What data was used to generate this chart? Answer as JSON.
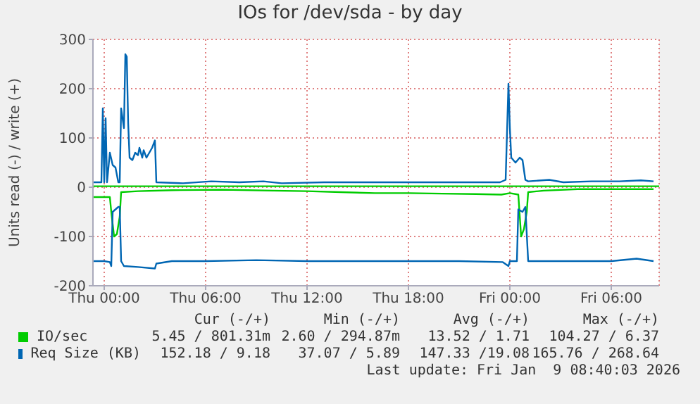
{
  "chart_data": {
    "type": "line",
    "title": "IOs for /dev/sda - by day",
    "ylabel": "Units read (-) / write (+)",
    "xlim": [
      "2026-01-07T23:20",
      "2026-01-09T08:50"
    ],
    "ylim": [
      -200,
      300
    ],
    "yticks": [
      -200,
      -100,
      0,
      100,
      200,
      300
    ],
    "xticks": [
      {
        "value": "2026-01-08T00:00",
        "label": "Thu 00:00"
      },
      {
        "value": "2026-01-08T06:00",
        "label": "Thu 06:00"
      },
      {
        "value": "2026-01-08T12:00",
        "label": "Thu 12:00"
      },
      {
        "value": "2026-01-08T18:00",
        "label": "Thu 18:00"
      },
      {
        "value": "2026-01-09T00:00",
        "label": "Fri 00:00"
      },
      {
        "value": "2026-01-09T06:00",
        "label": "Fri 06:00"
      }
    ],
    "grid": true,
    "legend": "bottom",
    "line_style": "solid",
    "marker": "none",
    "series": [
      {
        "name": "IO/sec",
        "color": "#00cc00",
        "x": [
          "2026-01-07T23:20",
          "2026-01-08T05:00",
          "2026-01-08T10:00",
          "2026-01-08T15:00",
          "2026-01-08T20:00",
          "2026-01-09T01:00",
          "2026-01-09T08:50"
        ],
        "values": [
          2,
          2,
          2,
          2,
          2,
          2,
          2
        ]
      },
      {
        "color": "#00cc00",
        "x": [
          "2026-01-07T23:20",
          "2026-01-08T00:20",
          "2026-01-08T00:25",
          "2026-01-08T00:35",
          "2026-01-08T00:45",
          "2026-01-08T00:55",
          "2026-01-08T01:00",
          "2026-01-08T02:00",
          "2026-01-08T04:00",
          "2026-01-08T07:00",
          "2026-01-08T10:00",
          "2026-01-08T12:00",
          "2026-01-08T14:00",
          "2026-01-08T16:00",
          "2026-01-08T18:00",
          "2026-01-08T20:00",
          "2026-01-08T22:00",
          "2026-01-08T23:30",
          "2026-01-09T00:00",
          "2026-01-09T00:30",
          "2026-01-09T00:40",
          "2026-01-09T00:50",
          "2026-01-09T01:00",
          "2026-01-09T01:05",
          "2026-01-09T02:00",
          "2026-01-09T04:00",
          "2026-01-09T06:00",
          "2026-01-09T08:30"
        ],
        "values": [
          -20,
          -20,
          -50,
          -100,
          -95,
          -60,
          -10,
          -8,
          -6,
          -5,
          -7,
          -8,
          -10,
          -12,
          -12,
          -13,
          -14,
          -15,
          -12,
          -15,
          -100,
          -85,
          -50,
          -10,
          -7,
          -4,
          -4,
          -4
        ]
      },
      {
        "name": "Req Size (KB)",
        "color": "#0066b3",
        "x": [
          "2026-01-07T23:20",
          "2026-01-07T23:50",
          "2026-01-07T23:55",
          "2026-01-08T00:00",
          "2026-01-08T00:05",
          "2026-01-08T00:10",
          "2026-01-08T00:20",
          "2026-01-08T00:30",
          "2026-01-08T00:40",
          "2026-01-08T00:50",
          "2026-01-08T00:55",
          "2026-01-08T01:00",
          "2026-01-08T01:05",
          "2026-01-08T01:10",
          "2026-01-08T01:15",
          "2026-01-08T01:20",
          "2026-01-08T01:25",
          "2026-01-08T01:30",
          "2026-01-08T01:40",
          "2026-01-08T01:50",
          "2026-01-08T02:00",
          "2026-01-08T02:05",
          "2026-01-08T02:15",
          "2026-01-08T02:20",
          "2026-01-08T02:30",
          "2026-01-08T02:40",
          "2026-01-08T02:50",
          "2026-01-08T03:00",
          "2026-01-08T03:05",
          "2026-01-08T04:40",
          "2026-01-08T06:20",
          "2026-01-08T08:00",
          "2026-01-08T09:25",
          "2026-01-08T10:30",
          "2026-01-08T13:00",
          "2026-01-08T15:30",
          "2026-01-08T18:00",
          "2026-01-08T20:30",
          "2026-01-08T23:25",
          "2026-01-08T23:45",
          "2026-01-08T23:55",
          "2026-01-09T00:00",
          "2026-01-09T00:05",
          "2026-01-09T00:20",
          "2026-01-09T00:35",
          "2026-01-09T00:45",
          "2026-01-09T00:55",
          "2026-01-09T01:05",
          "2026-01-09T02:20",
          "2026-01-09T03:10",
          "2026-01-09T04:50",
          "2026-01-09T06:30",
          "2026-01-09T07:45",
          "2026-01-09T08:30"
        ],
        "values": [
          10,
          10,
          160,
          10,
          140,
          10,
          70,
          45,
          40,
          10,
          10,
          160,
          140,
          120,
          270,
          265,
          130,
          60,
          55,
          70,
          65,
          80,
          60,
          75,
          60,
          70,
          80,
          95,
          10,
          8,
          12,
          10,
          12,
          8,
          10,
          10,
          10,
          10,
          10,
          15,
          210,
          120,
          60,
          50,
          60,
          55,
          15,
          12,
          15,
          10,
          12,
          12,
          14,
          12
        ]
      },
      {
        "color": "#0066b3",
        "x": [
          "2026-01-07T23:20",
          "2026-01-08T00:00",
          "2026-01-08T00:20",
          "2026-01-08T00:25",
          "2026-01-08T00:30",
          "2026-01-08T00:40",
          "2026-01-08T00:50",
          "2026-01-08T00:55",
          "2026-01-08T01:00",
          "2026-01-08T01:10",
          "2026-01-08T02:00",
          "2026-01-08T03:00",
          "2026-01-08T03:05",
          "2026-01-08T04:00",
          "2026-01-08T06:00",
          "2026-01-08T09:00",
          "2026-01-08T12:00",
          "2026-01-08T15:00",
          "2026-01-08T18:00",
          "2026-01-08T21:00",
          "2026-01-08T23:35",
          "2026-01-08T23:55",
          "2026-01-09T00:00",
          "2026-01-09T00:25",
          "2026-01-09T00:30",
          "2026-01-09T00:45",
          "2026-01-09T00:55",
          "2026-01-09T01:05",
          "2026-01-09T03:00",
          "2026-01-09T06:00",
          "2026-01-09T07:30",
          "2026-01-09T08:30"
        ],
        "values": [
          -150,
          -150,
          -152,
          -160,
          -50,
          -45,
          -40,
          -40,
          -150,
          -160,
          -162,
          -165,
          -155,
          -150,
          -150,
          -148,
          -150,
          -150,
          -150,
          -150,
          -152,
          -160,
          -150,
          -150,
          -45,
          -50,
          -40,
          -150,
          -150,
          -150,
          -145,
          -150
        ]
      }
    ],
    "annotations": [
      "Cur (-/+)",
      "Min (-/+)",
      "Avg (-/+)",
      "Max (-/+)",
      "5.45 / 801.31m",
      "2.60 / 294.87m",
      "13.52 / 1.71",
      "104.27 / 6.37",
      "152.18 / 9.18",
      "37.07 / 5.89",
      "147.33 /19.08",
      "165.76 / 268.64",
      "Last update: Fri Jan  9 08:40:03 2026"
    ]
  }
}
